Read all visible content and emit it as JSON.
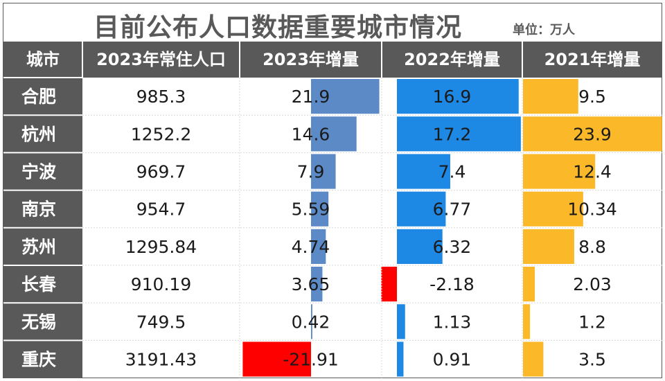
{
  "title": "目前公布人口数据重要城市情况",
  "unit": "单位：万人",
  "colors": {
    "header_bg": "#595959",
    "city_bg": "#595959",
    "bar_2023": "#5b8ac6",
    "bar_2022": "#1e88e5",
    "bar_2021": "#fbb829",
    "negative": "#ff0000"
  },
  "chart_data": {
    "type": "table",
    "columns": [
      "城市",
      "2023年常住人口",
      "2023年增量",
      "2022年增量",
      "2021年增量"
    ],
    "rows": [
      {
        "city": "合肥",
        "pop": "985.3",
        "inc2023": "21.9",
        "inc2022": "16.9",
        "inc2021": "9.5"
      },
      {
        "city": "杭州",
        "pop": "1252.2",
        "inc2023": "14.6",
        "inc2022": "17.2",
        "inc2021": "23.9"
      },
      {
        "city": "宁波",
        "pop": "969.7",
        "inc2023": "7.9",
        "inc2022": "7.4",
        "inc2021": "12.4"
      },
      {
        "city": "南京",
        "pop": "954.7",
        "inc2023": "5.59",
        "inc2022": "6.77",
        "inc2021": "10.34"
      },
      {
        "city": "苏州",
        "pop": "1295.84",
        "inc2023": "4.74",
        "inc2022": "6.32",
        "inc2021": "8.8"
      },
      {
        "city": "长春",
        "pop": "910.19",
        "inc2023": "3.65",
        "inc2022": "-2.18",
        "inc2021": "2.03"
      },
      {
        "city": "无锡",
        "pop": "749.5",
        "inc2023": "0.42",
        "inc2022": "1.13",
        "inc2021": "1.2"
      },
      {
        "city": "重庆",
        "pop": "3191.43",
        "inc2023": "-21.91",
        "inc2022": "0.91",
        "inc2021": "3.5"
      }
    ]
  }
}
